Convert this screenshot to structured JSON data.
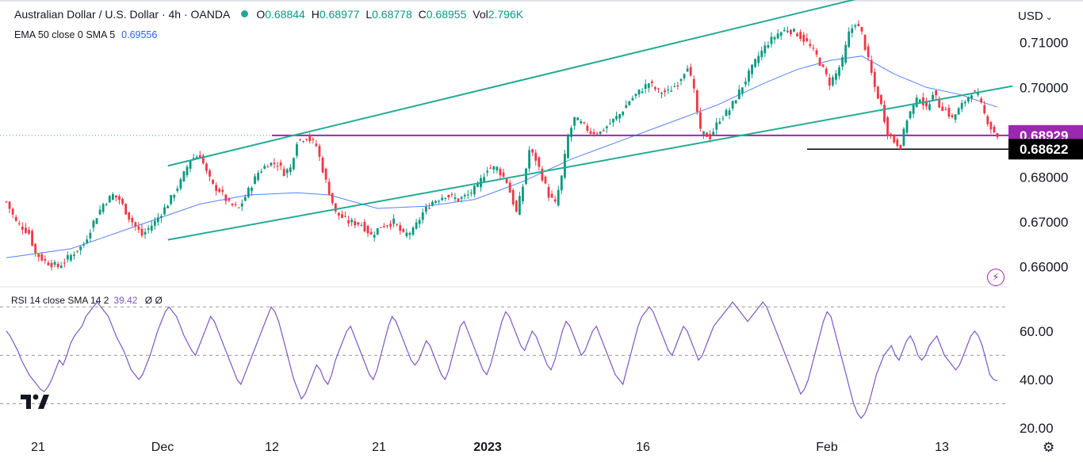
{
  "header": {
    "symbol": "Australian Dollar / U.S. Dollar · 4h · OANDA",
    "open_label": "O",
    "open": "0.68844",
    "high_label": "H",
    "high": "0.68977",
    "low_label": "L",
    "low": "0.68778",
    "close_label": "C",
    "close": "0.68955",
    "vol_label": "Vol",
    "vol": "2.796K"
  },
  "indicators": {
    "ema_label": "EMA 50 close 0 SMA 5",
    "ema_value": "0.69556",
    "rsi_label": "RSI 14 close SMA 14 2",
    "rsi_value": "39.42",
    "rsi_extra": "Ø Ø"
  },
  "currency_label": "USD",
  "colors": {
    "up": "#089981",
    "down": "#f23645",
    "channel": "#22ab94",
    "support": "#9c27b0",
    "ema": "#2962ff",
    "rsi": "#7e57c2"
  },
  "icons": {
    "logo": "tradingview-logo-icon",
    "alert": "lightning-icon",
    "settings": "gear-icon"
  },
  "chart_data": [
    {
      "type": "candlestick",
      "title": "Australian Dollar / U.S. Dollar · 4h · OANDA",
      "ylim": [
        0.6555,
        0.7195
      ],
      "y_ticks": [
        "0.71000",
        "0.70000",
        "0.68000",
        "0.67000",
        "0.66000"
      ],
      "x_ticks": [
        "21",
        "Dec",
        "12",
        "21",
        "2023",
        "16",
        "Feb",
        "13"
      ],
      "price_labels": [
        {
          "label": "0.68929",
          "value": 0.68929,
          "color": "#9c27b0"
        },
        {
          "label": "0.68622",
          "value": 0.68622,
          "color": "#000000"
        }
      ],
      "price_path": [
        [
          0,
          0.6745
        ],
        [
          3,
          0.67
        ],
        [
          7,
          0.6675
        ],
        [
          9,
          0.663
        ],
        [
          12,
          0.6612
        ],
        [
          16,
          0.66
        ],
        [
          20,
          0.6625
        ],
        [
          24,
          0.665
        ],
        [
          27,
          0.67
        ],
        [
          30,
          0.674
        ],
        [
          33,
          0.676
        ],
        [
          35,
          0.675
        ],
        [
          38,
          0.671
        ],
        [
          42,
          0.667
        ],
        [
          46,
          0.67
        ],
        [
          50,
          0.674
        ],
        [
          54,
          0.679
        ],
        [
          57,
          0.684
        ],
        [
          60,
          0.685
        ],
        [
          62,
          0.681
        ],
        [
          64,
          0.678
        ],
        [
          66,
          0.677
        ],
        [
          69,
          0.674
        ],
        [
          72,
          0.673
        ],
        [
          75,
          0.677
        ],
        [
          78,
          0.681
        ],
        [
          81,
          0.683
        ],
        [
          84,
          0.683
        ],
        [
          86,
          0.681
        ],
        [
          88,
          0.682
        ],
        [
          90,
          0.688
        ],
        [
          93,
          0.689
        ],
        [
          96,
          0.687
        ],
        [
          99,
          0.679
        ],
        [
          102,
          0.672
        ],
        [
          106,
          0.67
        ],
        [
          110,
          0.6695
        ],
        [
          113,
          0.667
        ],
        [
          116,
          0.669
        ],
        [
          120,
          0.67
        ],
        [
          123,
          0.667
        ],
        [
          126,
          0.668
        ],
        [
          129,
          0.672
        ],
        [
          132,
          0.6745
        ],
        [
          136,
          0.676
        ],
        [
          140,
          0.675
        ],
        [
          143,
          0.676
        ],
        [
          146,
          0.678
        ],
        [
          149,
          0.682
        ],
        [
          152,
          0.682
        ],
        [
          155,
          0.679
        ],
        [
          158,
          0.672
        ],
        [
          160,
          0.678
        ],
        [
          162,
          0.686
        ],
        [
          164,
          0.684
        ],
        [
          166,
          0.68
        ],
        [
          168,
          0.676
        ],
        [
          170,
          0.674
        ],
        [
          172,
          0.68
        ],
        [
          174,
          0.689
        ],
        [
          176,
          0.693
        ],
        [
          178,
          0.692
        ],
        [
          181,
          0.69
        ],
        [
          184,
          0.69
        ],
        [
          187,
          0.692
        ],
        [
          190,
          0.694
        ],
        [
          193,
          0.697
        ],
        [
          196,
          0.699
        ],
        [
          199,
          0.701
        ],
        [
          202,
          0.699
        ],
        [
          205,
          0.699
        ],
        [
          208,
          0.701
        ],
        [
          211,
          0.705
        ],
        [
          213,
          0.699
        ],
        [
          215,
          0.69
        ],
        [
          218,
          0.689
        ],
        [
          221,
          0.693
        ],
        [
          224,
          0.695
        ],
        [
          227,
          0.699
        ],
        [
          230,
          0.703
        ],
        [
          233,
          0.707
        ],
        [
          236,
          0.71
        ],
        [
          239,
          0.712
        ],
        [
          242,
          0.713
        ],
        [
          245,
          0.712
        ],
        [
          248,
          0.71
        ],
        [
          251,
          0.707
        ],
        [
          253,
          0.704
        ],
        [
          255,
          0.701
        ],
        [
          257,
          0.703
        ],
        [
          259,
          0.706
        ],
        [
          261,
          0.712
        ],
        [
          263,
          0.7145
        ],
        [
          265,
          0.712
        ],
        [
          267,
          0.706
        ],
        [
          269,
          0.7
        ],
        [
          271,
          0.696
        ],
        [
          273,
          0.69
        ],
        [
          275,
          0.688
        ],
        [
          277,
          0.687
        ],
        [
          279,
          0.693
        ],
        [
          281,
          0.696
        ],
        [
          283,
          0.698
        ],
        [
          285,
          0.695
        ],
        [
          287,
          0.699
        ],
        [
          289,
          0.696
        ],
        [
          291,
          0.695
        ],
        [
          293,
          0.693
        ],
        [
          295,
          0.695
        ],
        [
          297,
          0.697
        ],
        [
          299,
          0.699
        ],
        [
          301,
          0.698
        ],
        [
          303,
          0.694
        ],
        [
          305,
          0.691
        ],
        [
          307,
          0.6892
        ]
      ],
      "ema_path": [
        [
          0,
          0.662
        ],
        [
          20,
          0.664
        ],
        [
          40,
          0.669
        ],
        [
          60,
          0.674
        ],
        [
          75,
          0.676
        ],
        [
          90,
          0.6765
        ],
        [
          100,
          0.676
        ],
        [
          115,
          0.673
        ],
        [
          130,
          0.6735
        ],
        [
          145,
          0.675
        ],
        [
          160,
          0.679
        ],
        [
          175,
          0.684
        ],
        [
          190,
          0.688
        ],
        [
          205,
          0.692
        ],
        [
          220,
          0.696
        ],
        [
          235,
          0.701
        ],
        [
          245,
          0.704
        ],
        [
          255,
          0.706
        ],
        [
          265,
          0.707
        ],
        [
          275,
          0.703
        ],
        [
          285,
          0.7
        ],
        [
          295,
          0.6985
        ],
        [
          307,
          0.6956
        ]
      ],
      "trendlines": [
        {
          "name": "upper-channel",
          "from": [
            0.155,
            0.6825
          ],
          "to": [
            0.835,
            0.7223
          ]
        },
        {
          "name": "lower-channel",
          "from": [
            0.155,
            0.666
          ],
          "to": [
            0.935,
            0.7003
          ]
        }
      ],
      "levels": [
        {
          "name": "support-0.68929",
          "value": 0.68929
        },
        {
          "name": "support-0.68622",
          "value": 0.68622
        }
      ]
    },
    {
      "type": "line",
      "title": "RSI 14 close SMA 14 2",
      "ylim": [
        20,
        75
      ],
      "y_ticks": [
        "60.00",
        "40.00",
        "20.00"
      ],
      "bands": [
        70,
        50,
        30
      ],
      "values": [
        60,
        58,
        55,
        52,
        48,
        45,
        42,
        40,
        38,
        36,
        35,
        37,
        40,
        44,
        48,
        46,
        50,
        55,
        58,
        60,
        62,
        66,
        68,
        70,
        72,
        70,
        68,
        66,
        62,
        58,
        55,
        52,
        48,
        44,
        42,
        40,
        42,
        46,
        50,
        55,
        60,
        64,
        68,
        70,
        68,
        66,
        62,
        58,
        55,
        52,
        50,
        54,
        58,
        62,
        66,
        64,
        60,
        56,
        52,
        48,
        44,
        40,
        38,
        42,
        46,
        50,
        54,
        58,
        62,
        66,
        70,
        68,
        64,
        58,
        52,
        46,
        40,
        36,
        32,
        34,
        38,
        42,
        46,
        44,
        40,
        38,
        42,
        48,
        52,
        56,
        60,
        62,
        58,
        54,
        50,
        46,
        42,
        40,
        44,
        50,
        56,
        62,
        66,
        64,
        60,
        56,
        52,
        48,
        46,
        48,
        52,
        56,
        54,
        50,
        46,
        42,
        40,
        44,
        50,
        56,
        62,
        64,
        60,
        56,
        52,
        48,
        44,
        42,
        46,
        52,
        58,
        64,
        68,
        66,
        62,
        58,
        54,
        52,
        56,
        60,
        58,
        54,
        50,
        46,
        44,
        48,
        54,
        60,
        64,
        62,
        58,
        54,
        50,
        52,
        56,
        60,
        62,
        58,
        54,
        50,
        46,
        42,
        40,
        38,
        44,
        50,
        56,
        62,
        66,
        68,
        70,
        68,
        64,
        60,
        56,
        52,
        50,
        54,
        58,
        62,
        60,
        56,
        52,
        48,
        50,
        54,
        58,
        62,
        64,
        66,
        68,
        70,
        72,
        70,
        68,
        66,
        64,
        66,
        68,
        70,
        72,
        70,
        66,
        62,
        58,
        54,
        50,
        46,
        42,
        38,
        34,
        36,
        40,
        46,
        52,
        58,
        64,
        68,
        66,
        60,
        54,
        48,
        42,
        36,
        30,
        26,
        24,
        26,
        30,
        36,
        42,
        46,
        50,
        52,
        54,
        50,
        48,
        52,
        56,
        58,
        55,
        50,
        48,
        50,
        54,
        56,
        58,
        54,
        50,
        48,
        46,
        44,
        46,
        50,
        54,
        58,
        60,
        58,
        54,
        48,
        42,
        40,
        39.42
      ]
    }
  ]
}
